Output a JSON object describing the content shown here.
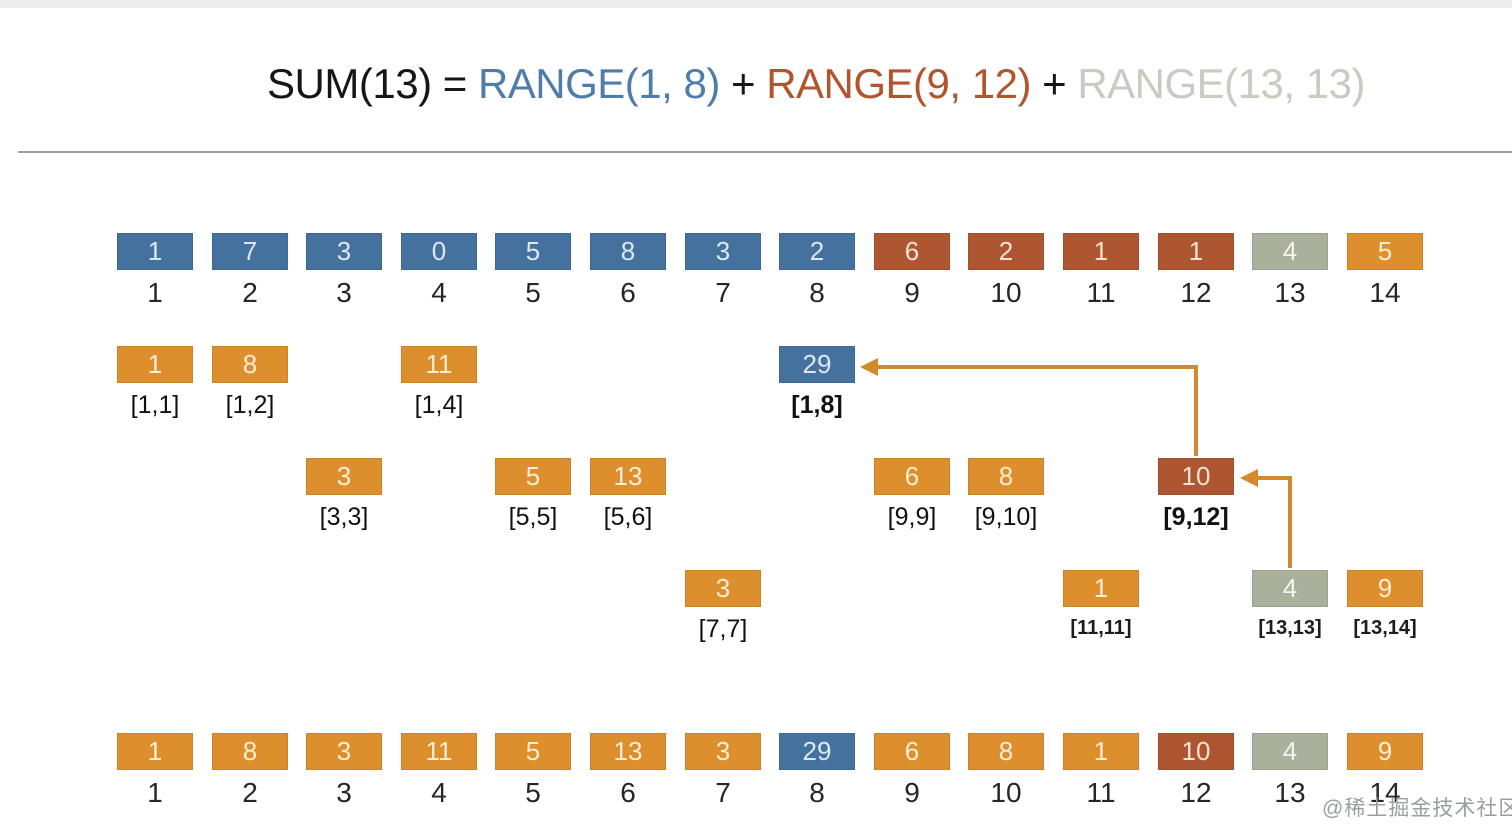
{
  "title": {
    "segments": [
      {
        "text": "SUM(13) = ",
        "color": "#161616"
      },
      {
        "text": "RANGE(1, 8)",
        "color": "#4e7dab"
      },
      {
        "text": " + ",
        "color": "#161616"
      },
      {
        "text": "RANGE(9, 12)",
        "color": "#b2542c"
      },
      {
        "text": " + ",
        "color": "#161616"
      },
      {
        "text": "RANGE(13, 13)",
        "color": "#c7ccc1"
      }
    ]
  },
  "palette": {
    "blue": "#44719e",
    "orange": "#dd8f2e",
    "rust": "#ae5631",
    "sage": "#a9b09c",
    "arrow": "#d28a2b",
    "value_text_on_blue": "#dce8f3",
    "value_text_on_orange": "#faeed6",
    "value_text_on_rust": "#f6e3d2",
    "value_text_on_sage": "#f4f6ee"
  },
  "array_row": {
    "cells": [
      {
        "value": "1",
        "index": "1",
        "color": "blue"
      },
      {
        "value": "7",
        "index": "2",
        "color": "blue"
      },
      {
        "value": "3",
        "index": "3",
        "color": "blue"
      },
      {
        "value": "0",
        "index": "4",
        "color": "blue"
      },
      {
        "value": "5",
        "index": "5",
        "color": "blue"
      },
      {
        "value": "8",
        "index": "6",
        "color": "blue"
      },
      {
        "value": "3",
        "index": "7",
        "color": "blue"
      },
      {
        "value": "2",
        "index": "8",
        "color": "blue"
      },
      {
        "value": "6",
        "index": "9",
        "color": "rust"
      },
      {
        "value": "2",
        "index": "10",
        "color": "rust"
      },
      {
        "value": "1",
        "index": "11",
        "color": "rust"
      },
      {
        "value": "1",
        "index": "12",
        "color": "rust"
      },
      {
        "value": "4",
        "index": "13",
        "color": "sage"
      },
      {
        "value": "5",
        "index": "14",
        "color": "orange"
      }
    ]
  },
  "tree_cells": [
    {
      "value": "1",
      "label": "[1,1]",
      "color": "orange",
      "col": 1,
      "row": 2,
      "bold": false,
      "small": false
    },
    {
      "value": "8",
      "label": "[1,2]",
      "color": "orange",
      "col": 2,
      "row": 2,
      "bold": false,
      "small": false
    },
    {
      "value": "11",
      "label": "[1,4]",
      "color": "orange",
      "col": 4,
      "row": 2,
      "bold": false,
      "small": false
    },
    {
      "value": "29",
      "label": "[1,8]",
      "color": "blue",
      "col": 8,
      "row": 2,
      "bold": true,
      "small": false
    },
    {
      "value": "3",
      "label": "[3,3]",
      "color": "orange",
      "col": 3,
      "row": 3,
      "bold": false,
      "small": false
    },
    {
      "value": "5",
      "label": "[5,5]",
      "color": "orange",
      "col": 5,
      "row": 3,
      "bold": false,
      "small": false
    },
    {
      "value": "13",
      "label": "[5,6]",
      "color": "orange",
      "col": 6,
      "row": 3,
      "bold": false,
      "small": false
    },
    {
      "value": "6",
      "label": "[9,9]",
      "color": "orange",
      "col": 9,
      "row": 3,
      "bold": false,
      "small": false
    },
    {
      "value": "8",
      "label": "[9,10]",
      "color": "orange",
      "col": 10,
      "row": 3,
      "bold": false,
      "small": false
    },
    {
      "value": "10",
      "label": "[9,12]",
      "color": "rust",
      "col": 12,
      "row": 3,
      "bold": true,
      "small": false
    },
    {
      "value": "3",
      "label": "[7,7]",
      "color": "orange",
      "col": 7,
      "row": 4,
      "bold": false,
      "small": false
    },
    {
      "value": "1",
      "label": "[11,11]",
      "color": "orange",
      "col": 11,
      "row": 4,
      "bold": false,
      "small": true
    },
    {
      "value": "4",
      "label": "[13,13]",
      "color": "sage",
      "col": 13,
      "row": 4,
      "bold": false,
      "small": true
    },
    {
      "value": "9",
      "label": "[13,14]",
      "color": "orange",
      "col": 14,
      "row": 4,
      "bold": false,
      "small": true
    }
  ],
  "bit_row": {
    "cells": [
      {
        "value": "1",
        "index": "1",
        "color": "orange"
      },
      {
        "value": "8",
        "index": "2",
        "color": "orange"
      },
      {
        "value": "3",
        "index": "3",
        "color": "orange"
      },
      {
        "value": "11",
        "index": "4",
        "color": "orange"
      },
      {
        "value": "5",
        "index": "5",
        "color": "orange"
      },
      {
        "value": "13",
        "index": "6",
        "color": "orange"
      },
      {
        "value": "3",
        "index": "7",
        "color": "orange"
      },
      {
        "value": "29",
        "index": "8",
        "color": "blue"
      },
      {
        "value": "6",
        "index": "9",
        "color": "orange"
      },
      {
        "value": "8",
        "index": "10",
        "color": "orange"
      },
      {
        "value": "1",
        "index": "11",
        "color": "orange"
      },
      {
        "value": "10",
        "index": "12",
        "color": "rust"
      },
      {
        "value": "4",
        "index": "13",
        "color": "sage"
      },
      {
        "value": "9",
        "index": "14",
        "color": "orange"
      }
    ]
  },
  "arrows": [
    {
      "from": "[9,12]",
      "to": "[1,8]"
    },
    {
      "from": "[13,13]",
      "to": "[9,12]"
    }
  ],
  "watermark": "@稀土掘金技术社区"
}
